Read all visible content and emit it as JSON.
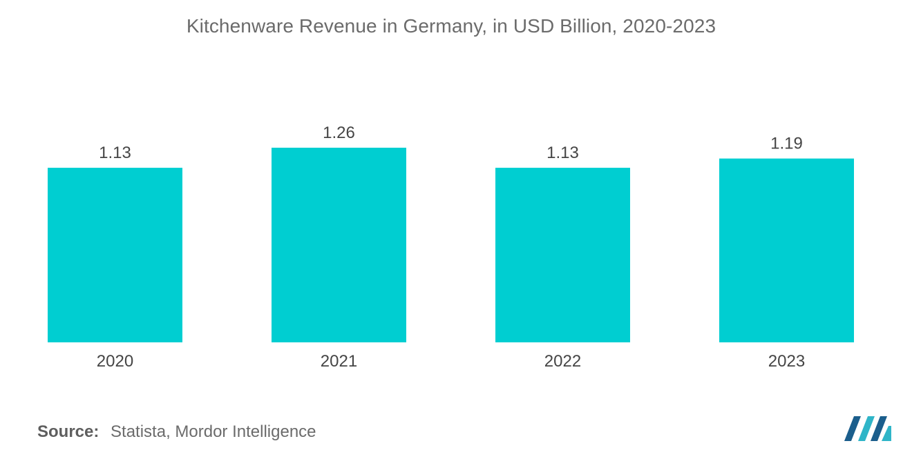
{
  "chart_data": {
    "type": "bar",
    "title": "Kitchenware Revenue in Germany, in USD Billion, 2020-2023",
    "categories": [
      "2020",
      "2021",
      "2022",
      "2023"
    ],
    "values": [
      1.13,
      1.26,
      1.13,
      1.19
    ],
    "value_labels": [
      "1.13",
      "1.26",
      "1.13",
      "1.19"
    ],
    "xlabel": "",
    "ylabel": "",
    "ylim": [
      0,
      1.26
    ],
    "grid": false,
    "legend": "none",
    "bar_color": "#00ced1"
  },
  "source": {
    "label": "Source:",
    "text": "Statista, Mordor Intelligence"
  },
  "logo": {
    "name": "mordor-intelligence-logo",
    "colors": [
      "#1b5e8c",
      "#2fb5c8"
    ]
  }
}
